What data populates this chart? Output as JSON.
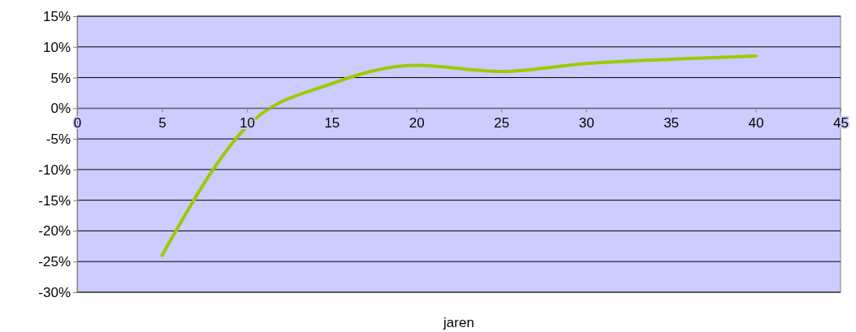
{
  "chart_data": {
    "type": "line",
    "xlabel": "jaren",
    "x": [
      5,
      10,
      15,
      20,
      25,
      30,
      35,
      40
    ],
    "series": [
      {
        "color": "#99cc00",
        "values": [
          -24,
          -3,
          4,
          7,
          6,
          7.3,
          8,
          8.5
        ]
      }
    ],
    "xlim": [
      0,
      45
    ],
    "xticks": [
      0,
      5,
      10,
      15,
      20,
      25,
      30,
      35,
      40,
      45
    ],
    "ylim": [
      -30,
      15
    ],
    "yticks": [
      {
        "value": -30,
        "label": "-30%"
      },
      {
        "value": -25,
        "label": "-25%"
      },
      {
        "value": -20,
        "label": "-20%"
      },
      {
        "value": -15,
        "label": "-15%"
      },
      {
        "value": -10,
        "label": "-10%"
      },
      {
        "value": -5,
        "label": "-5%"
      },
      {
        "value": 0,
        "label": "0%"
      },
      {
        "value": 5,
        "label": "5%"
      },
      {
        "value": 10,
        "label": "10%"
      },
      {
        "value": 15,
        "label": "15%"
      }
    ],
    "grid": "y",
    "marker": "none",
    "line_style": "solid"
  }
}
